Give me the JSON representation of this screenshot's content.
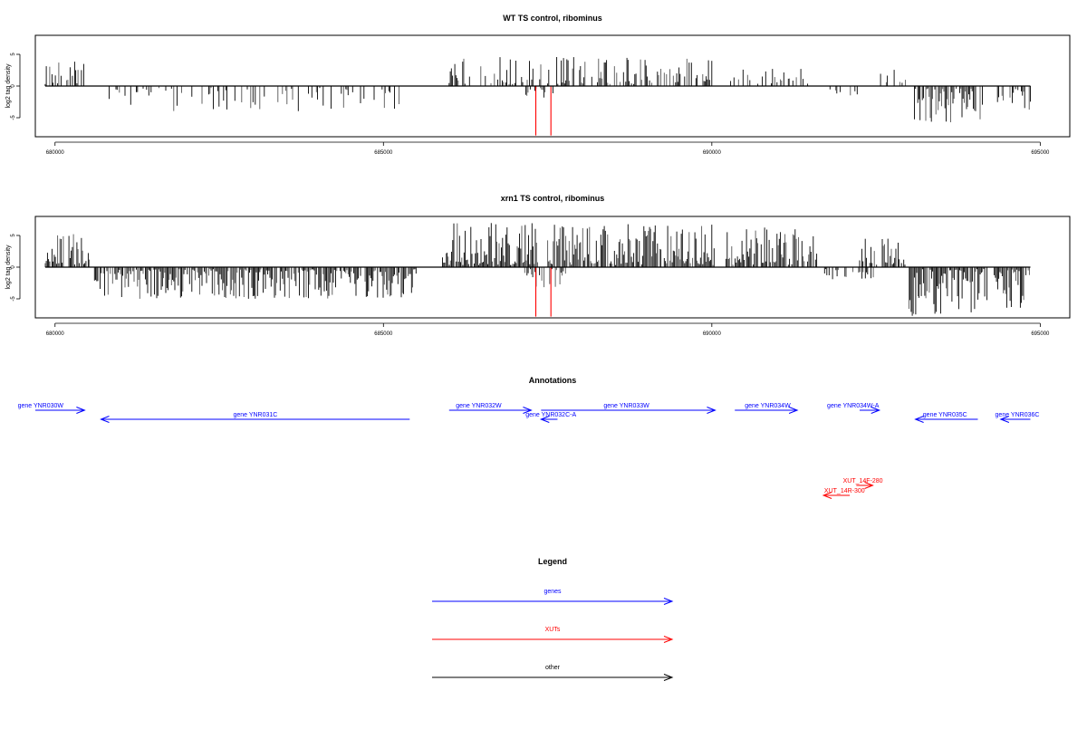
{
  "colors": {
    "gene": "#0000ff",
    "xut": "#ff0000",
    "other": "#000000",
    "axis": "#000000"
  },
  "chart_data": [
    {
      "type": "bar",
      "title": "WT TS control, ribominus",
      "ylabel": "log2 tag density",
      "xlim": [
        679700,
        695450
      ],
      "ylim": [
        -8,
        8
      ],
      "xticks": [
        680000,
        685000,
        690000,
        695000
      ],
      "yticks": [
        -5,
        0,
        5
      ],
      "series": [
        {
          "strand": "plus",
          "segments": [
            {
              "start": 679850,
              "end": 680450,
              "max": 4.4,
              "density": 0.55
            },
            {
              "start": 686000,
              "end": 687400,
              "max": 4.7,
              "density": 0.45
            },
            {
              "start": 687500,
              "end": 690000,
              "max": 4.6,
              "density": 0.4
            },
            {
              "start": 690200,
              "end": 691500,
              "max": 2.9,
              "density": 0.25
            },
            {
              "start": 692500,
              "end": 692950,
              "max": 3.8,
              "density": 0.5
            }
          ]
        },
        {
          "strand": "minus",
          "segments": [
            {
              "start": 680600,
              "end": 685400,
              "max": 4.0,
              "density": 0.22
            },
            {
              "start": 687150,
              "end": 687650,
              "max": 2.0,
              "density": 0.35
            },
            {
              "start": 691800,
              "end": 692400,
              "max": 1.5,
              "density": 0.15
            },
            {
              "start": 693050,
              "end": 694150,
              "max": 5.8,
              "density": 0.75
            },
            {
              "start": 694350,
              "end": 694850,
              "max": 4.0,
              "density": 0.6
            }
          ]
        }
      ],
      "highlights": [
        {
          "x": 687320,
          "value": -7.8
        },
        {
          "x": 687550,
          "value": -7.8
        }
      ]
    },
    {
      "type": "bar",
      "title": "xrn1 TS control, ribominus",
      "ylabel": "log2 tag density",
      "xlim": [
        679700,
        695450
      ],
      "ylim": [
        -8,
        8
      ],
      "xticks": [
        680000,
        685000,
        690000,
        695000
      ],
      "yticks": [
        -5,
        0,
        5
      ],
      "series": [
        {
          "strand": "plus",
          "segments": [
            {
              "start": 679850,
              "end": 680550,
              "max": 5.3,
              "density": 0.85
            },
            {
              "start": 685900,
              "end": 687350,
              "max": 7.2,
              "density": 0.95
            },
            {
              "start": 687500,
              "end": 690050,
              "max": 6.8,
              "density": 0.9
            },
            {
              "start": 690200,
              "end": 691600,
              "max": 6.4,
              "density": 0.8
            },
            {
              "start": 692250,
              "end": 692950,
              "max": 4.5,
              "density": 0.6
            }
          ]
        },
        {
          "strand": "minus",
          "segments": [
            {
              "start": 680600,
              "end": 685500,
              "max": 5.0,
              "density": 0.85
            },
            {
              "start": 687100,
              "end": 687800,
              "max": 3.5,
              "density": 0.6
            },
            {
              "start": 691700,
              "end": 692500,
              "max": 2.0,
              "density": 0.25
            },
            {
              "start": 693000,
              "end": 694200,
              "max": 7.8,
              "density": 0.95
            },
            {
              "start": 694300,
              "end": 694850,
              "max": 6.5,
              "density": 0.9
            }
          ]
        }
      ],
      "highlights": [
        {
          "x": 687320,
          "value": -7.8
        },
        {
          "x": 687550,
          "value": -7.8
        }
      ]
    }
  ],
  "annotations": {
    "title": "Annotations",
    "items": [
      {
        "label": "gene YNR030W",
        "kind": "gene",
        "from": 679700,
        "to": 680450,
        "row": 0,
        "label_x": 679780
      },
      {
        "label": "gene YNR031C",
        "kind": "gene",
        "from": 685400,
        "to": 680700,
        "row": 1,
        "label_x": 683050
      },
      {
        "label": "gene YNR032W",
        "kind": "gene",
        "from": 686000,
        "to": 687250,
        "row": 0,
        "label_x": 686450
      },
      {
        "label": "gene YNR032C-A",
        "kind": "gene",
        "from": 687650,
        "to": 687400,
        "row": 1,
        "label_x": 687550
      },
      {
        "label": "gene YNR033W",
        "kind": "gene",
        "from": 687400,
        "to": 690050,
        "row": 0,
        "label_x": 688700
      },
      {
        "label": "gene YNR034W",
        "kind": "gene",
        "from": 690350,
        "to": 691300,
        "row": 0,
        "label_x": 690850
      },
      {
        "label": "gene YNR034W-A",
        "kind": "gene",
        "from": 692250,
        "to": 692550,
        "row": 0,
        "label_x": 692150
      },
      {
        "label": "gene YNR035C",
        "kind": "gene",
        "from": 694050,
        "to": 693100,
        "row": 1,
        "label_x": 693550
      },
      {
        "label": "gene YNR036C",
        "kind": "gene",
        "from": 694850,
        "to": 694400,
        "row": 1,
        "label_x": 694650
      },
      {
        "label": "XUT_14F-280",
        "kind": "xut",
        "from": 692200,
        "to": 692450,
        "row": 2,
        "label_x": 692300
      },
      {
        "label": "XUT_14R-300",
        "kind": "xut",
        "from": 692100,
        "to": 691700,
        "row": 3,
        "label_x": 692020
      }
    ]
  },
  "legend": {
    "title": "Legend",
    "items": [
      {
        "label": "genes",
        "kind": "gene"
      },
      {
        "label": "XUTs",
        "kind": "xut"
      },
      {
        "label": "other",
        "kind": "other"
      }
    ]
  }
}
